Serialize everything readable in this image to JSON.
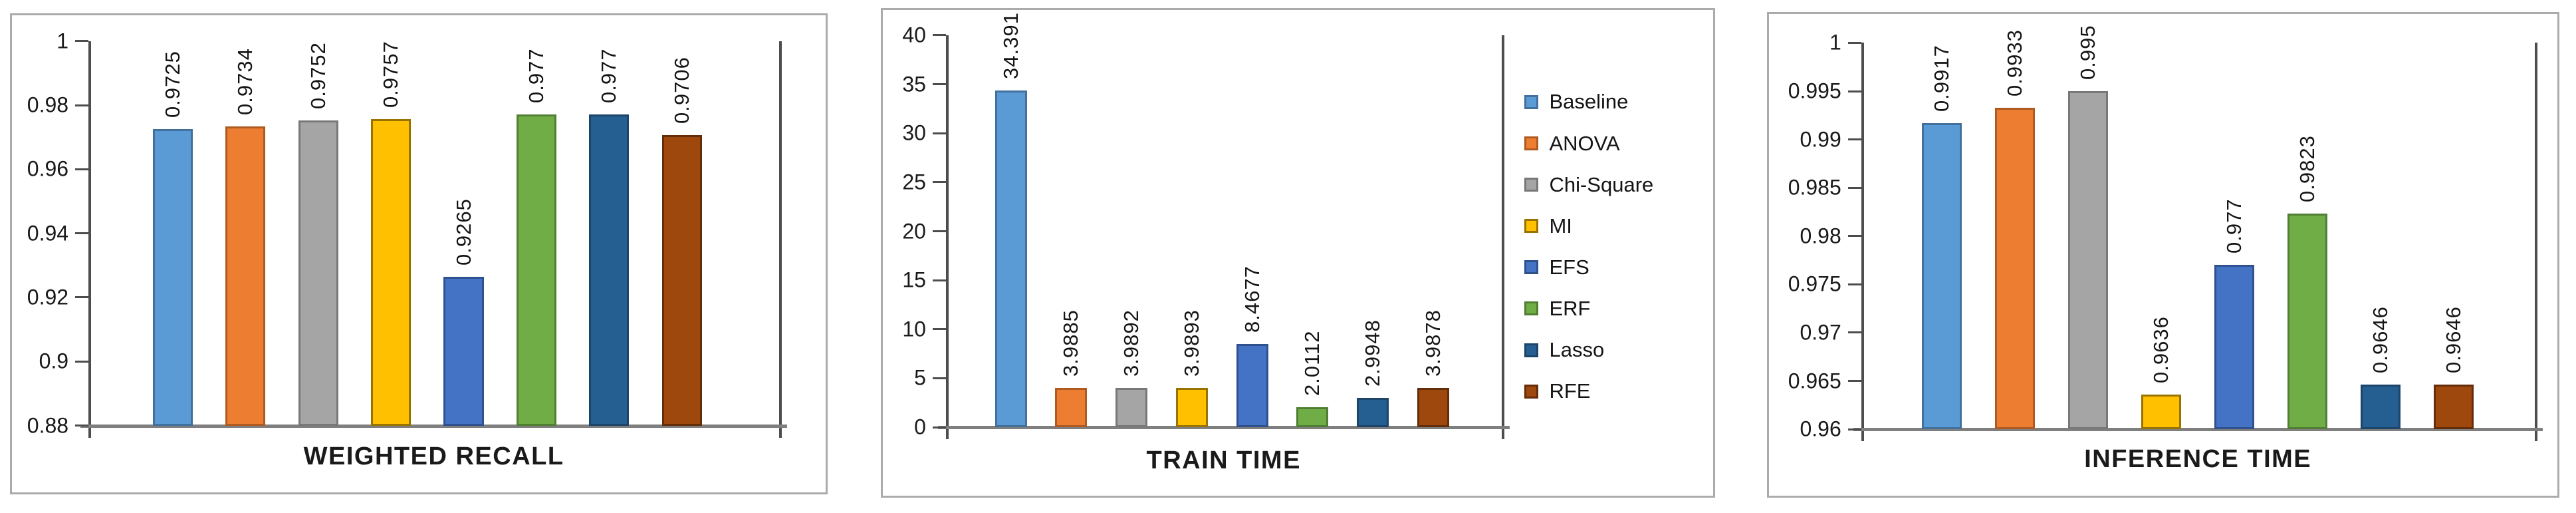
{
  "figure": {
    "description": "Three bar charts comparing feature-selection methods",
    "accent_colors": {
      "axis_line": "#4d4d4d",
      "baseline": "#7f7f7f",
      "panel_border": "#ababab",
      "text": "#1a1a1a"
    }
  },
  "series": [
    {
      "name": "Baseline",
      "color": "#5B9BD5",
      "border": "#41719C"
    },
    {
      "name": "ANOVA",
      "color": "#ED7D31",
      "border": "#AE5A21"
    },
    {
      "name": "Chi-Square",
      "color": "#A5A5A5",
      "border": "#787878"
    },
    {
      "name": "MI",
      "color": "#FFC000",
      "border": "#997300"
    },
    {
      "name": "EFS",
      "color": "#4472C4",
      "border": "#2F528F"
    },
    {
      "name": "ERF",
      "color": "#70AD47",
      "border": "#507E32"
    },
    {
      "name": "Lasso",
      "color": "#255E91",
      "border": "#1C4569"
    },
    {
      "name": "RFE",
      "color": "#9E480E",
      "border": "#632D09"
    }
  ],
  "chart_data": [
    {
      "type": "bar",
      "title": "WEIGHTED RECALL",
      "xlabel": "",
      "ylabel": "",
      "categories": [
        "Baseline",
        "ANOVA",
        "Chi-Square",
        "MI",
        "EFS",
        "ERF",
        "Lasso",
        "RFE"
      ],
      "values": [
        0.9725,
        0.9734,
        0.9752,
        0.9757,
        0.9265,
        0.977,
        0.977,
        0.9706
      ],
      "value_labels": [
        "0.9725",
        "0.9734",
        "0.9752",
        "0.9757",
        "0.9265",
        "0.977",
        "0.977",
        "0.9706"
      ],
      "ylim": [
        0.88,
        1
      ],
      "yticks": [
        "1",
        "0.98",
        "0.96",
        "0.94",
        "0.92",
        "0.9",
        "0.88"
      ],
      "grid": false,
      "legend": false
    },
    {
      "type": "bar",
      "title": "TRAIN TIME",
      "xlabel": "",
      "ylabel": "",
      "categories": [
        "Baseline",
        "ANOVA",
        "Chi-Square",
        "MI",
        "EFS",
        "ERF",
        "Lasso",
        "RFE"
      ],
      "values": [
        34.391,
        3.9885,
        3.9892,
        3.9893,
        8.4677,
        2.0112,
        2.9948,
        3.9878
      ],
      "value_labels": [
        "34.391",
        "3.9885",
        "3.9892",
        "3.9893",
        "8.4677",
        "2.0112",
        "2.9948",
        "3.9878"
      ],
      "ylim": [
        0,
        40
      ],
      "yticks": [
        "40",
        "35",
        "30",
        "25",
        "20",
        "15",
        "10",
        "5",
        "0"
      ],
      "grid": false,
      "legend": true,
      "legend_position": "right",
      "legend_entries": [
        "Baseline",
        "ANOVA",
        "Chi-Square",
        "MI",
        "EFS",
        "ERF",
        "Lasso",
        "RFE"
      ]
    },
    {
      "type": "bar",
      "title": "INFERENCE TIME",
      "xlabel": "",
      "ylabel": "",
      "categories": [
        "Baseline",
        "ANOVA",
        "Chi-Square",
        "MI",
        "EFS",
        "ERF",
        "Lasso",
        "RFE"
      ],
      "values": [
        0.9917,
        0.9933,
        0.995,
        0.9636,
        0.977,
        0.9823,
        0.9646,
        0.9646
      ],
      "value_labels": [
        "0.9917",
        "0.9933",
        "0.995",
        "0.9636",
        "0.977",
        "0.9823",
        "0.9646",
        "0.9646"
      ],
      "ylim": [
        0.96,
        1
      ],
      "yticks": [
        "1",
        "0.995",
        "0.99",
        "0.985",
        "0.98",
        "0.975",
        "0.97",
        "0.965",
        "0.96"
      ],
      "grid": false,
      "legend": false
    }
  ]
}
